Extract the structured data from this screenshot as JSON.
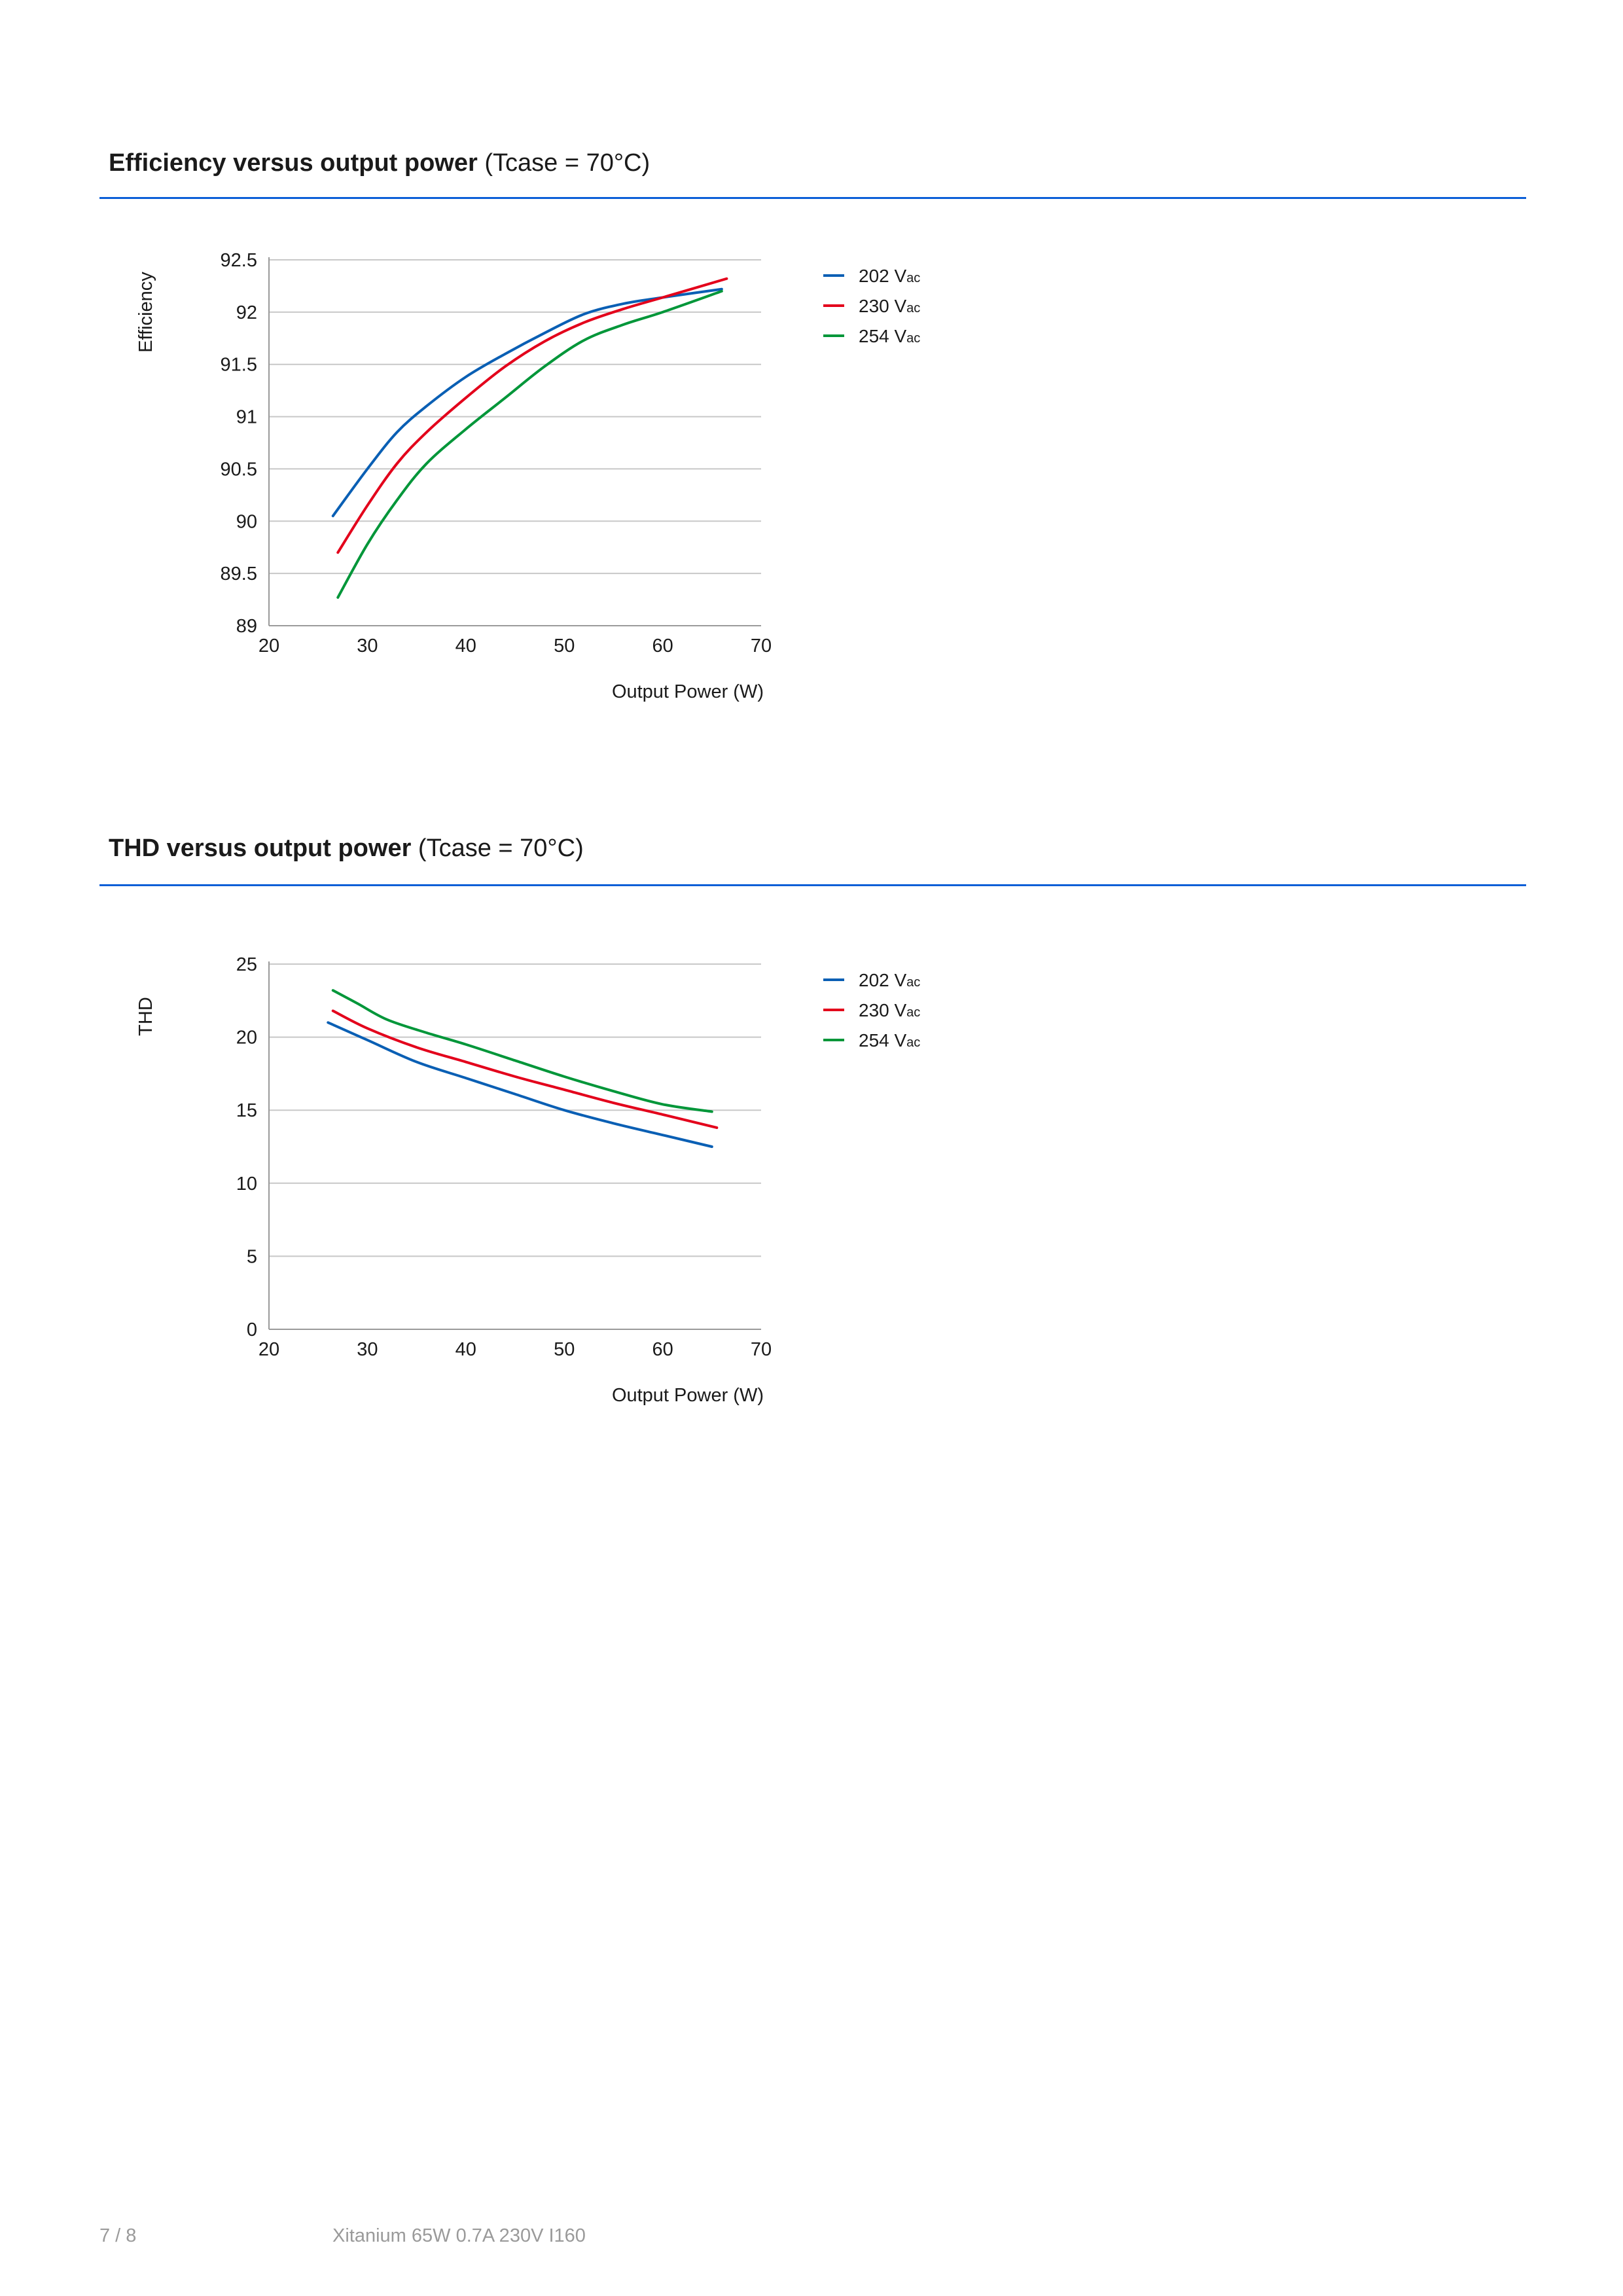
{
  "sections": [
    {
      "title_bold": "Efficiency versus output power",
      "title_rest": " (Tcase = 70°C)"
    },
    {
      "title_bold": "THD versus output power",
      "title_rest": " (Tcase = 70°C)"
    }
  ],
  "colors": {
    "202": "#0a5fb4",
    "230": "#e3001b",
    "254": "#009639",
    "rule": "#0b5ed7"
  },
  "chart_data": [
    {
      "type": "line",
      "title": "Efficiency versus output power (Tcase = 70°C)",
      "xlabel": "Output Power (W)",
      "ylabel": "Efficiency",
      "xlim": [
        20,
        70
      ],
      "ylim": [
        89,
        92.5
      ],
      "xticks": [
        20,
        30,
        40,
        50,
        60,
        70
      ],
      "yticks": [
        89,
        89.5,
        90,
        90.5,
        91,
        91.5,
        92,
        92.5
      ],
      "ytick_labels": [
        "89",
        "89.5",
        "90",
        "90.5",
        "91",
        "91.5",
        "92",
        "92.5"
      ],
      "grid": true,
      "legend": "right",
      "series": [
        {
          "name": "202 Vac",
          "color": "#0a5fb4",
          "x": [
            26.5,
            30,
            33,
            36,
            40,
            44,
            48,
            52,
            56,
            60,
            66
          ],
          "y": [
            90.05,
            90.5,
            90.85,
            91.1,
            91.38,
            91.6,
            91.8,
            91.98,
            92.08,
            92.14,
            92.22
          ]
        },
        {
          "name": "230 Vac",
          "color": "#e3001b",
          "x": [
            27,
            30,
            33,
            36,
            40,
            44,
            48,
            52,
            56,
            60,
            66.5
          ],
          "y": [
            89.7,
            90.15,
            90.55,
            90.85,
            91.18,
            91.48,
            91.72,
            91.9,
            92.03,
            92.14,
            92.32
          ]
        },
        {
          "name": "254 Vac",
          "color": "#009639",
          "x": [
            27,
            30,
            33,
            36,
            40,
            44,
            48,
            52,
            56,
            60,
            66
          ],
          "y": [
            89.27,
            89.78,
            90.2,
            90.55,
            90.88,
            91.18,
            91.48,
            91.73,
            91.88,
            92.0,
            92.2
          ]
        }
      ]
    },
    {
      "type": "line",
      "title": "THD versus output power (Tcase = 70°C)",
      "xlabel": "Output Power (W)",
      "ylabel": "THD",
      "xlim": [
        20,
        70
      ],
      "ylim": [
        0,
        25
      ],
      "xticks": [
        20,
        30,
        40,
        50,
        60,
        70
      ],
      "yticks": [
        0,
        5,
        10,
        15,
        20,
        25
      ],
      "ytick_labels": [
        "0",
        "5",
        "10",
        "15",
        "20",
        "25"
      ],
      "grid": true,
      "legend": "right",
      "series": [
        {
          "name": "202 Vac",
          "color": "#0a5fb4",
          "x": [
            26,
            30,
            35,
            40,
            45,
            50,
            55,
            60,
            65
          ],
          "y": [
            21.0,
            19.8,
            18.3,
            17.2,
            16.1,
            15.0,
            14.1,
            13.3,
            12.5
          ]
        },
        {
          "name": "230 Vac",
          "color": "#e3001b",
          "x": [
            26.5,
            30,
            35,
            40,
            45,
            50,
            55,
            60,
            65.5
          ],
          "y": [
            21.8,
            20.6,
            19.3,
            18.3,
            17.3,
            16.4,
            15.5,
            14.7,
            13.8
          ]
        },
        {
          "name": "254 Vac",
          "color": "#009639",
          "x": [
            26.5,
            29,
            32,
            36,
            40,
            45,
            50,
            55,
            60,
            65
          ],
          "y": [
            23.2,
            22.3,
            21.2,
            20.3,
            19.5,
            18.4,
            17.3,
            16.3,
            15.4,
            14.9
          ]
        }
      ]
    }
  ],
  "legend_labels": [
    {
      "main": "202 V",
      "sub": "ac"
    },
    {
      "main": "230 V",
      "sub": "ac"
    },
    {
      "main": "254 V",
      "sub": "ac"
    }
  ],
  "footer": {
    "page": "7 / 8",
    "product": "Xitanium 65W 0.7A 230V I160"
  }
}
